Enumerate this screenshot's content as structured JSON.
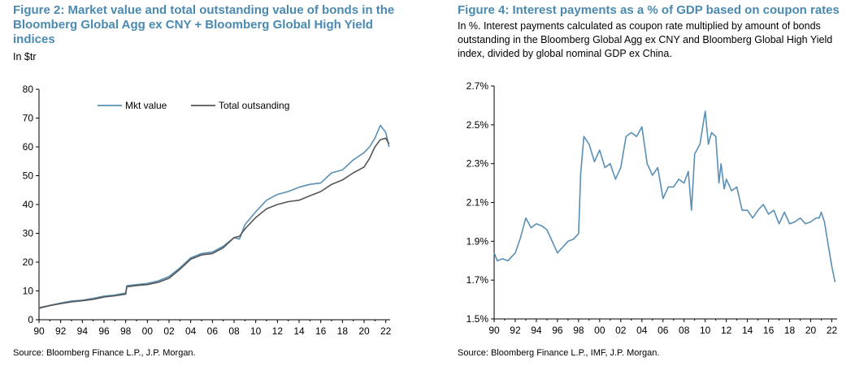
{
  "colors": {
    "accent_title": "#4a8ab0",
    "series_blue": "#5a8fb5",
    "series_gray": "#555555"
  },
  "chart_data": [
    {
      "type": "line",
      "title": "Figure 2: Market value and total outstanding value of bonds in the Bloomberg Global Agg ex CNY + Bloomberg Global High Yield indices",
      "subtitle": "In $tr",
      "source": "Source: Bloomberg Finance L.P., J.P. Morgan.",
      "ylim": [
        0,
        80
      ],
      "xlim": [
        1990,
        2022.4
      ],
      "ytick_labels": [
        "0",
        "10",
        "20",
        "30",
        "40",
        "50",
        "60",
        "70",
        "80"
      ],
      "xtick_labels": [
        "90",
        "92",
        "94",
        "96",
        "98",
        "00",
        "02",
        "04",
        "06",
        "08",
        "10",
        "12",
        "14",
        "16",
        "18",
        "20",
        "22"
      ],
      "legend_position": "top-center",
      "grid": false,
      "series": [
        {
          "name": "Mkt value",
          "color": "#5a8fb5",
          "x": [
            1990,
            1991,
            1992,
            1993,
            1994,
            1995,
            1996,
            1997,
            1998,
            1998.1,
            1999,
            2000,
            2001,
            2002,
            2003,
            2004,
            2005,
            2006,
            2007,
            2008,
            2008.5,
            2009,
            2010,
            2011,
            2012,
            2013,
            2014,
            2015,
            2016,
            2017,
            2018,
            2019,
            2020,
            2020.5,
            2021,
            2021.5,
            2022,
            2022.3
          ],
          "y": [
            4.2,
            5,
            5.8,
            6.5,
            6.8,
            7.4,
            8.2,
            8.6,
            9.3,
            11.8,
            12.2,
            12.6,
            13.5,
            15,
            18,
            21.5,
            23,
            23.5,
            25.5,
            28.5,
            28,
            33,
            37.5,
            41.5,
            43.5,
            44.5,
            46,
            47,
            47.5,
            51,
            52,
            55.5,
            58,
            60,
            63,
            67.5,
            65,
            60
          ]
        },
        {
          "name": "Total outsanding",
          "color": "#555555",
          "x": [
            1990,
            1991,
            1992,
            1993,
            1994,
            1995,
            1996,
            1997,
            1998,
            1998.1,
            1999,
            2000,
            2001,
            2002,
            2003,
            2004,
            2005,
            2006,
            2007,
            2008,
            2008.5,
            2009,
            2010,
            2011,
            2012,
            2013,
            2014,
            2015,
            2016,
            2017,
            2018,
            2019,
            2020,
            2020.5,
            2021,
            2021.5,
            2022,
            2022.3
          ],
          "y": [
            4,
            4.9,
            5.6,
            6.2,
            6.6,
            7.1,
            7.9,
            8.3,
            8.9,
            11.4,
            11.9,
            12.2,
            13,
            14.4,
            17.5,
            21,
            22.5,
            23,
            25,
            28.5,
            29,
            31.5,
            35.5,
            38.5,
            40,
            41,
            41.5,
            43,
            44.5,
            47,
            48.5,
            51,
            53,
            56,
            60,
            62.5,
            63,
            61
          ]
        }
      ]
    },
    {
      "type": "line",
      "title": "Figure 4: Interest payments as a % of GDP based on coupon rates",
      "subtitle": "In %. Interest payments calculated as coupon rate multiplied by amount of bonds outstanding in the Bloomberg Global Agg ex CNY and Bloomberg Global High Yield index, divided by global nominal GDP ex China.",
      "source": "Source: Bloomberg Finance L.P., IMF, J.P. Morgan.",
      "ylim": [
        1.5,
        2.7
      ],
      "xlim": [
        1990,
        2022.5
      ],
      "ytick_labels": [
        "1.5%",
        "1.7%",
        "1.9%",
        "2.1%",
        "2.3%",
        "2.5%",
        "2.7%"
      ],
      "xtick_labels": [
        "90",
        "92",
        "94",
        "96",
        "98",
        "00",
        "02",
        "04",
        "06",
        "08",
        "10",
        "12",
        "14",
        "16",
        "18",
        "20",
        "22"
      ],
      "grid": false,
      "series": [
        {
          "color": "#5a8fb5",
          "x": [
            1990,
            1990.3,
            1990.8,
            1991.3,
            1992,
            1992.5,
            1993,
            1993.5,
            1994,
            1994.5,
            1995,
            1995.5,
            1996,
            1996.5,
            1997,
            1997.5,
            1998,
            1998.2,
            1998.5,
            1999,
            1999.5,
            2000,
            2000.5,
            2001,
            2001.5,
            2002,
            2002.5,
            2003,
            2003.5,
            2004,
            2004.5,
            2005,
            2005.5,
            2006,
            2006.5,
            2007,
            2007.5,
            2008,
            2008.4,
            2008.7,
            2009,
            2009.5,
            2010,
            2010.3,
            2010.6,
            2011,
            2011.3,
            2011.5,
            2011.8,
            2012,
            2012.5,
            2013,
            2013.5,
            2014,
            2014.5,
            2015,
            2015.5,
            2016,
            2016.5,
            2017,
            2017.5,
            2018,
            2018.5,
            2019,
            2019.5,
            2020,
            2020.5,
            2020.8,
            2021,
            2021.3,
            2021.6,
            2022,
            2022.3
          ],
          "y": [
            1.84,
            1.8,
            1.81,
            1.8,
            1.84,
            1.92,
            2.02,
            1.97,
            1.99,
            1.98,
            1.96,
            1.9,
            1.84,
            1.87,
            1.9,
            1.91,
            1.94,
            2.25,
            2.44,
            2.4,
            2.31,
            2.37,
            2.28,
            2.3,
            2.22,
            2.28,
            2.44,
            2.46,
            2.44,
            2.49,
            2.3,
            2.24,
            2.28,
            2.12,
            2.18,
            2.18,
            2.22,
            2.2,
            2.26,
            2.06,
            2.35,
            2.4,
            2.57,
            2.4,
            2.46,
            2.44,
            2.2,
            2.3,
            2.17,
            2.22,
            2.16,
            2.18,
            2.06,
            2.06,
            2.02,
            2.06,
            2.09,
            2.04,
            2.06,
            1.99,
            2.05,
            1.99,
            2.0,
            2.02,
            1.99,
            2.0,
            2.02,
            2.02,
            2.05,
            2.0,
            1.9,
            1.77,
            1.69
          ]
        }
      ]
    }
  ]
}
